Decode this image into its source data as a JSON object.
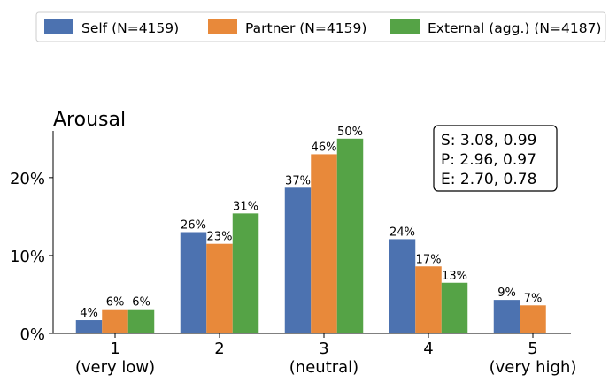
{
  "chart_data": {
    "type": "bar",
    "title": "Arousal",
    "categories": [
      "1\n(very low)",
      "2",
      "3\n(neutral)",
      "4",
      "5\n(very high)"
    ],
    "ylim": [
      0,
      26
    ],
    "y_ticks": [
      {
        "value": 0,
        "label": "0%"
      },
      {
        "value": 10,
        "label": "10%"
      },
      {
        "value": 20,
        "label": "20%"
      }
    ],
    "grid": false,
    "legend_position": "top",
    "series": [
      {
        "name": "Self (N=4159)",
        "color": "#4c72b0",
        "values": [
          1.7,
          13.0,
          18.7,
          12.1,
          4.3
        ],
        "labels": [
          "4%",
          "26%",
          "37%",
          "24%",
          "9%"
        ]
      },
      {
        "name": "Partner (N=4159)",
        "color": "#e8893a",
        "values": [
          3.1,
          11.5,
          23.0,
          8.6,
          3.6
        ],
        "labels": [
          "6%",
          "23%",
          "46%",
          "17%",
          "7%"
        ]
      },
      {
        "name": "External (agg.) (N=4187)",
        "color": "#55a346",
        "values": [
          3.1,
          15.4,
          25.0,
          6.5,
          null
        ],
        "labels": [
          "6%",
          "31%",
          "50%",
          "13%",
          null
        ]
      }
    ],
    "stats_box": [
      "S: 3.08, 0.99",
      "P: 2.96, 0.97",
      "E: 2.70, 0.78"
    ]
  }
}
